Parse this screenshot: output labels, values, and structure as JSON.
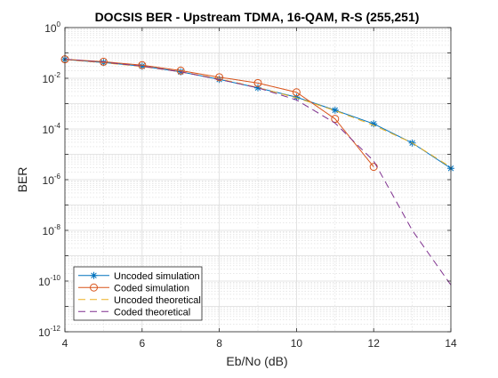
{
  "chart_data": {
    "type": "line",
    "title": "DOCSIS BER - Upstream TDMA, 16-QAM, R-S (255,251)",
    "xlabel": "Eb/No (dB)",
    "ylabel": "BER",
    "xlim": [
      4,
      14
    ],
    "ylim_log10": [
      -12,
      0
    ],
    "yscale": "log",
    "grid": true,
    "minor_grid": true,
    "legend_location": "bottom-left",
    "xticks": [
      {
        "value": 4,
        "label": "4"
      },
      {
        "value": 6,
        "label": "6"
      },
      {
        "value": 8,
        "label": "8"
      },
      {
        "value": 10,
        "label": "10"
      },
      {
        "value": 12,
        "label": "12"
      },
      {
        "value": 14,
        "label": "14"
      }
    ],
    "yticks": [
      {
        "value": 1.0,
        "base": "10",
        "exp": "0"
      },
      {
        "value": 0.01,
        "base": "10",
        "exp": "-2"
      },
      {
        "value": 0.0001,
        "base": "10",
        "exp": "-4"
      },
      {
        "value": 1e-06,
        "base": "10",
        "exp": "-6"
      },
      {
        "value": 1e-08,
        "base": "10",
        "exp": "-8"
      },
      {
        "value": 1e-10,
        "base": "10",
        "exp": "-10"
      },
      {
        "value": 1e-12,
        "base": "10",
        "exp": "-12"
      }
    ],
    "series": [
      {
        "name": "Uncoded simulation",
        "color": "#0072BD",
        "style": "solid",
        "marker": "asterisk",
        "x": [
          4,
          5,
          6,
          7,
          8,
          9,
          10,
          11,
          12,
          13,
          14
        ],
        "y": [
          0.055,
          0.042,
          0.03,
          0.018,
          0.009,
          0.0042,
          0.0018,
          0.00055,
          0.00016,
          2.8e-05,
          2.8e-06
        ]
      },
      {
        "name": "Coded simulation",
        "color": "#D95319",
        "style": "solid",
        "marker": "circle",
        "x": [
          4,
          5,
          6,
          7,
          8,
          9,
          10,
          11,
          12
        ],
        "y": [
          0.056,
          0.045,
          0.033,
          0.02,
          0.011,
          0.0065,
          0.0028,
          0.00025,
          3.2e-06
        ]
      },
      {
        "name": "Uncoded theoretical",
        "color": "#EDB120",
        "style": "dashed",
        "marker": "none",
        "x": [
          4,
          5,
          6,
          7,
          8,
          9,
          10,
          11,
          12,
          13,
          14
        ],
        "y": [
          0.054,
          0.041,
          0.029,
          0.018,
          0.0095,
          0.0043,
          0.0017,
          0.00053,
          0.00014,
          2.8e-05,
          3.1e-06
        ]
      },
      {
        "name": "Coded theoretical",
        "color": "#7E2F8E",
        "style": "dashed",
        "marker": "none",
        "x": [
          4,
          5,
          6,
          7,
          8,
          9,
          10,
          11,
          12,
          13,
          14
        ],
        "y": [
          0.056,
          0.043,
          0.03,
          0.018,
          0.009,
          0.0042,
          0.0014,
          0.00017,
          5.5e-06,
          1e-08,
          7e-11
        ]
      }
    ]
  }
}
